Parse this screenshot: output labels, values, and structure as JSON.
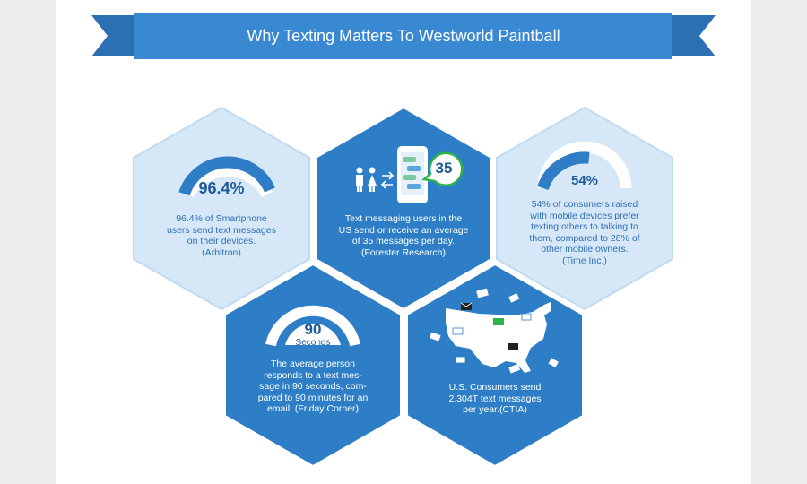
{
  "banner": {
    "title": "Why Texting Matters To Westworld Paintball"
  },
  "colors": {
    "dark_blue": "#2f7fc4",
    "light_blue": "#d7e8f7",
    "accent_green": "#2db34a"
  },
  "stats": {
    "smartphone": {
      "value": "96.4%",
      "gauge_fraction": 0.964,
      "caption": [
        "96.4% of Smartphone",
        "users send text messages",
        "on their devices.",
        "(Arbitron)"
      ]
    },
    "messages_per_day": {
      "value": "35",
      "caption": [
        "Text messaging users in the",
        "US send or receive an average",
        "of 35 messages per day.",
        "(Forester Research)"
      ]
    },
    "prefer_texting": {
      "value": "54%",
      "gauge_fraction": 0.54,
      "caption": [
        "54% of consumers raised",
        "with mobile devices prefer",
        "texting others to talking to",
        "them, compared to 28% of",
        "other mobile owners.",
        "(Time Inc.)"
      ]
    },
    "response_time": {
      "value": "90",
      "unit": "Seconds",
      "caption": [
        "The average person",
        "responds to a text mes-",
        "sage in 90 seconds, com-",
        "pared to 90 minutes for an",
        "email. (Friday Corner)"
      ]
    },
    "yearly_texts": {
      "caption": [
        "U.S. Consumers send",
        "2.304T text messages",
        "per year.(CTIA)"
      ]
    }
  }
}
